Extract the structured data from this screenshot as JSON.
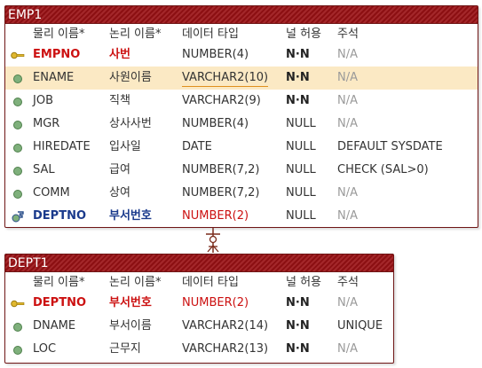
{
  "emp1": {
    "name": "EMP1",
    "headers": [
      "물리 이름*",
      "논리 이름*",
      "데이터 타입",
      "널 허용",
      "주석"
    ],
    "rows": [
      {
        "icon": "key-icon",
        "physical": "EMPNO",
        "logical": "사번",
        "type": "NUMBER(4)",
        "null": "N·N",
        "comment": "N/A"
      },
      {
        "icon": "column-dot-icon",
        "physical": "ENAME",
        "logical": "사원이름",
        "type": "VARCHAR2(10)",
        "null": "N·N",
        "comment": "N/A"
      },
      {
        "icon": "column-dot-icon",
        "physical": "JOB",
        "logical": "직책",
        "type": "VARCHAR2(9)",
        "null": "N·N",
        "comment": "N/A"
      },
      {
        "icon": "column-dot-icon",
        "physical": "MGR",
        "logical": "상사사번",
        "type": "NUMBER(4)",
        "null": "NULL",
        "comment": "N/A"
      },
      {
        "icon": "column-dot-icon",
        "physical": "HIREDATE",
        "logical": "입사일",
        "type": "DATE",
        "null": "NULL",
        "comment": "DEFAULT SYSDATE"
      },
      {
        "icon": "column-dot-icon",
        "physical": "SAL",
        "logical": "급여",
        "type": "NUMBER(7,2)",
        "null": "NULL",
        "comment": "CHECK (SAL>0)"
      },
      {
        "icon": "column-dot-icon",
        "physical": "COMM",
        "logical": "상여",
        "type": "NUMBER(7,2)",
        "null": "NULL",
        "comment": "N/A"
      },
      {
        "icon": "foreign-key-icon",
        "physical": "DEPTNO",
        "logical": "부서번호",
        "type": "NUMBER(2)",
        "null": "NULL",
        "comment": "N/A"
      }
    ]
  },
  "dept1": {
    "name": "DEPT1",
    "headers": [
      "물리 이름*",
      "논리 이름*",
      "데이터 타입",
      "널 허용",
      "주석"
    ],
    "rows": [
      {
        "icon": "key-icon",
        "physical": "DEPTNO",
        "logical": "부서번호",
        "type": "NUMBER(2)",
        "null": "N·N",
        "comment": "N/A"
      },
      {
        "icon": "column-dot-icon",
        "physical": "DNAME",
        "logical": "부서이름",
        "type": "VARCHAR2(14)",
        "null": "N·N",
        "comment": "UNIQUE"
      },
      {
        "icon": "column-dot-icon",
        "physical": "LOC",
        "logical": "근무지",
        "type": "VARCHAR2(13)",
        "null": "N·N",
        "comment": "N/A"
      }
    ]
  },
  "colors": {
    "header": "#8c0f12",
    "primary_key": "#cc1111",
    "foreign_key": "#1a3a8c",
    "selected_row": "#fbe9c4",
    "relationship": "#7a2a1a"
  }
}
